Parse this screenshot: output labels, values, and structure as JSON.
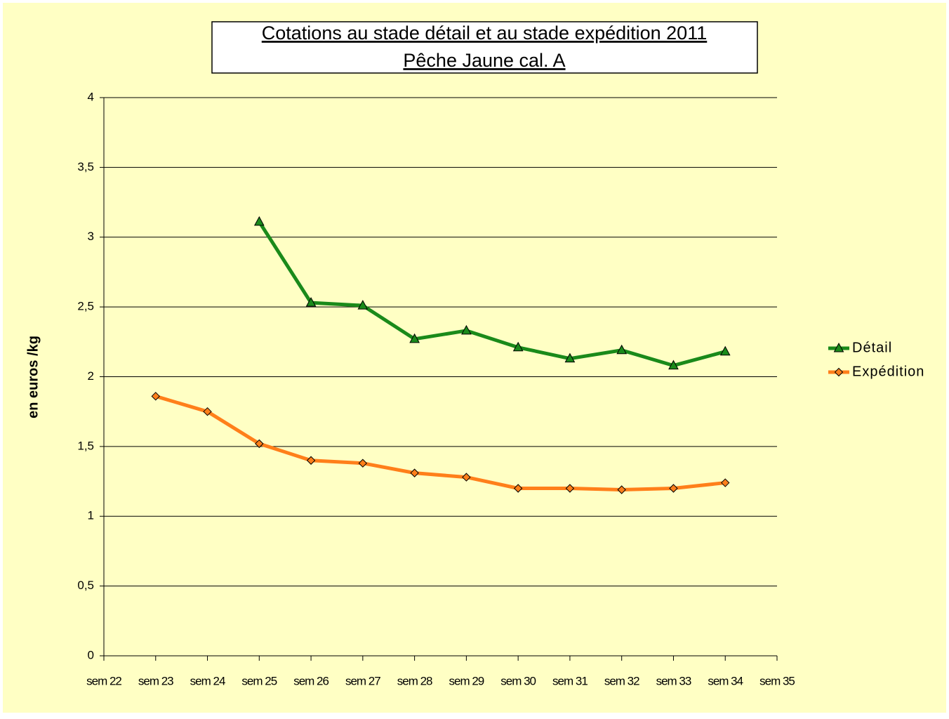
{
  "chart_data": {
    "type": "line",
    "title": "Cotations au stade détail et au stade expédition 2011",
    "subtitle": "Pêche Jaune cal. A",
    "y_label": "en euros /kg",
    "categories": [
      "sem 22",
      "sem 23",
      "sem 24",
      "sem 25",
      "sem 26",
      "sem 27",
      "sem 28",
      "sem 29",
      "sem 30",
      "sem 31",
      "sem 32",
      "sem 33",
      "sem 34",
      "sem 35"
    ],
    "series": [
      {
        "name": "Détail",
        "color": "#1a8a1a",
        "marker": "triangle",
        "values": [
          null,
          null,
          null,
          3.11,
          2.53,
          2.51,
          2.27,
          2.33,
          2.21,
          2.13,
          2.19,
          2.08,
          2.18,
          null
        ]
      },
      {
        "name": "Expédition",
        "color": "#ff7f1a",
        "marker": "diamond",
        "values": [
          null,
          1.86,
          1.75,
          1.52,
          1.4,
          1.38,
          1.31,
          1.28,
          1.2,
          1.2,
          1.19,
          1.2,
          1.24,
          null
        ]
      }
    ],
    "ylim": [
      0,
      4
    ],
    "yticks": [
      0,
      {
        "value": 0.5,
        "label": "0,5"
      },
      1,
      {
        "value": 1.5,
        "label": "1,5"
      },
      2,
      {
        "value": 2.5,
        "label": "2,5"
      },
      3,
      {
        "value": 3.5,
        "label": "3,5"
      },
      4
    ],
    "grid": true,
    "legend": "right"
  }
}
